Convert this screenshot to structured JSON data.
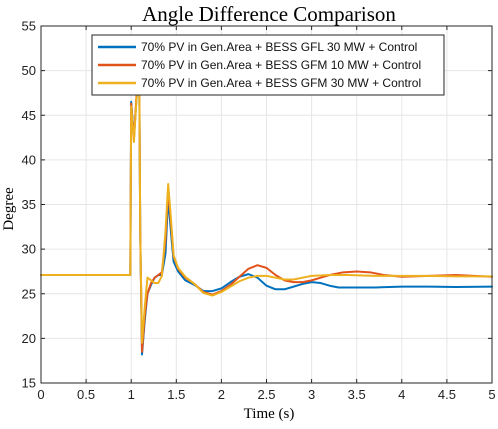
{
  "chart_data": {
    "type": "line",
    "title": "Angle Difference Comparison",
    "xlabel": "Time (s)",
    "ylabel": "Degree",
    "xlim": [
      0,
      5
    ],
    "ylim": [
      15,
      55
    ],
    "xticks": [
      0,
      0.5,
      1,
      1.5,
      2,
      2.5,
      3,
      3.5,
      4,
      4.5,
      5
    ],
    "yticks": [
      15,
      20,
      25,
      30,
      35,
      40,
      45,
      50,
      55
    ],
    "xtick_labels": [
      "0",
      "0.5",
      "1",
      "1.5",
      "2",
      "2.5",
      "3",
      "3.5",
      "4",
      "4.5",
      "5"
    ],
    "ytick_labels": [
      "15",
      "20",
      "25",
      "30",
      "35",
      "40",
      "45",
      "50",
      "55"
    ],
    "grid": true,
    "legend_position": "top",
    "series": [
      {
        "name": "70% PV in Gen.Area + BESS GFL 30 MW + Control",
        "color": "#0072BD",
        "points": [
          [
            0,
            27.1
          ],
          [
            0.99,
            27.1
          ],
          [
            1.0,
            46.5
          ],
          [
            1.03,
            42.5
          ],
          [
            1.06,
            47.0
          ],
          [
            1.09,
            48.5
          ],
          [
            1.1,
            32.0
          ],
          [
            1.12,
            18.2
          ],
          [
            1.15,
            22.0
          ],
          [
            1.18,
            25.0
          ],
          [
            1.22,
            26.0
          ],
          [
            1.26,
            26.8
          ],
          [
            1.3,
            27.1
          ],
          [
            1.34,
            27.1
          ],
          [
            1.38,
            29.5
          ],
          [
            1.41,
            35.8
          ],
          [
            1.44,
            32.0
          ],
          [
            1.47,
            28.6
          ],
          [
            1.52,
            27.5
          ],
          [
            1.6,
            26.5
          ],
          [
            1.7,
            26.0
          ],
          [
            1.8,
            25.3
          ],
          [
            1.9,
            25.3
          ],
          [
            2.0,
            25.6
          ],
          [
            2.1,
            26.3
          ],
          [
            2.2,
            26.9
          ],
          [
            2.3,
            27.2
          ],
          [
            2.4,
            26.8
          ],
          [
            2.5,
            25.9
          ],
          [
            2.6,
            25.5
          ],
          [
            2.7,
            25.5
          ],
          [
            2.8,
            25.8
          ],
          [
            2.9,
            26.1
          ],
          [
            3.0,
            26.3
          ],
          [
            3.1,
            26.2
          ],
          [
            3.2,
            25.9
          ],
          [
            3.3,
            25.7
          ],
          [
            3.5,
            25.7
          ],
          [
            3.7,
            25.7
          ],
          [
            4.0,
            25.8
          ],
          [
            4.3,
            25.8
          ],
          [
            4.6,
            25.75
          ],
          [
            5.0,
            25.8
          ]
        ]
      },
      {
        "name": "70% PV in Gen.Area + BESS GFM 10 MW + Control",
        "color": "#E2531C",
        "points": [
          [
            0,
            27.1
          ],
          [
            0.99,
            27.1
          ],
          [
            1.0,
            46.3
          ],
          [
            1.03,
            42.3
          ],
          [
            1.06,
            47.5
          ],
          [
            1.09,
            49.0
          ],
          [
            1.1,
            32.0
          ],
          [
            1.12,
            18.5
          ],
          [
            1.15,
            22.5
          ],
          [
            1.18,
            25.0
          ],
          [
            1.22,
            26.2
          ],
          [
            1.26,
            26.8
          ],
          [
            1.3,
            27.1
          ],
          [
            1.34,
            27.4
          ],
          [
            1.38,
            31.0
          ],
          [
            1.41,
            36.8
          ],
          [
            1.44,
            33.0
          ],
          [
            1.47,
            29.2
          ],
          [
            1.52,
            27.8
          ],
          [
            1.6,
            26.8
          ],
          [
            1.7,
            26.1
          ],
          [
            1.8,
            25.2
          ],
          [
            1.9,
            24.9
          ],
          [
            2.0,
            25.3
          ],
          [
            2.1,
            26.0
          ],
          [
            2.2,
            26.9
          ],
          [
            2.3,
            27.8
          ],
          [
            2.4,
            28.2
          ],
          [
            2.5,
            27.9
          ],
          [
            2.6,
            27.1
          ],
          [
            2.7,
            26.5
          ],
          [
            2.8,
            26.3
          ],
          [
            2.9,
            26.3
          ],
          [
            3.0,
            26.5
          ],
          [
            3.1,
            26.8
          ],
          [
            3.2,
            27.1
          ],
          [
            3.35,
            27.4
          ],
          [
            3.5,
            27.5
          ],
          [
            3.65,
            27.4
          ],
          [
            3.8,
            27.1
          ],
          [
            4.0,
            26.9
          ],
          [
            4.3,
            27.0
          ],
          [
            4.6,
            27.1
          ],
          [
            5.0,
            26.9
          ]
        ]
      },
      {
        "name": "70% PV in Gen.Area + BESS GFM 30 MW + Control",
        "color": "#EDB120",
        "points": [
          [
            0,
            27.1
          ],
          [
            0.99,
            27.1
          ],
          [
            1.0,
            46.0
          ],
          [
            1.03,
            42.0
          ],
          [
            1.06,
            47.0
          ],
          [
            1.09,
            49.0
          ],
          [
            1.1,
            32.0
          ],
          [
            1.12,
            19.5
          ],
          [
            1.15,
            23.5
          ],
          [
            1.18,
            26.8
          ],
          [
            1.22,
            26.5
          ],
          [
            1.26,
            26.2
          ],
          [
            1.3,
            26.2
          ],
          [
            1.34,
            27.0
          ],
          [
            1.38,
            32.0
          ],
          [
            1.41,
            37.3
          ],
          [
            1.44,
            33.5
          ],
          [
            1.47,
            29.3
          ],
          [
            1.52,
            27.9
          ],
          [
            1.6,
            26.9
          ],
          [
            1.7,
            26.1
          ],
          [
            1.8,
            25.1
          ],
          [
            1.9,
            24.8
          ],
          [
            2.0,
            25.2
          ],
          [
            2.1,
            25.8
          ],
          [
            2.2,
            26.4
          ],
          [
            2.3,
            26.8
          ],
          [
            2.4,
            27.0
          ],
          [
            2.5,
            27.0
          ],
          [
            2.6,
            26.8
          ],
          [
            2.7,
            26.6
          ],
          [
            2.8,
            26.6
          ],
          [
            2.9,
            26.8
          ],
          [
            3.0,
            27.0
          ],
          [
            3.2,
            27.1
          ],
          [
            3.4,
            27.1
          ],
          [
            3.7,
            27.0
          ],
          [
            4.0,
            27.0
          ],
          [
            4.3,
            27.0
          ],
          [
            4.6,
            26.95
          ],
          [
            5.0,
            26.95
          ]
        ]
      }
    ]
  }
}
